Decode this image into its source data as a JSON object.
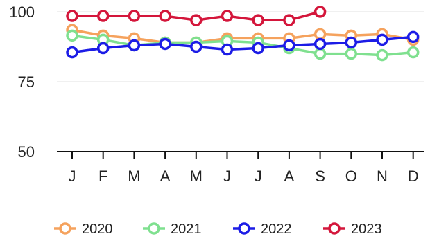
{
  "chart_data": {
    "type": "line",
    "categories": [
      "J",
      "F",
      "M",
      "A",
      "M",
      "J",
      "J",
      "A",
      "S",
      "O",
      "N",
      "D"
    ],
    "ylim": [
      50,
      100
    ],
    "yticks": [
      50,
      75,
      100
    ],
    "grid": true,
    "legend_position": "bottom",
    "series": [
      {
        "name": "2020",
        "color": "#f5a25d",
        "values": [
          93.5,
          91.5,
          90.5,
          89,
          89,
          90.5,
          90.5,
          90.5,
          92,
          91.5,
          92,
          90
        ]
      },
      {
        "name": "2021",
        "color": "#7fe08f",
        "values": [
          91.5,
          90,
          88,
          89,
          89,
          89.5,
          89,
          87,
          85,
          85,
          84.5,
          85.5
        ]
      },
      {
        "name": "2022",
        "color": "#1c1ce6",
        "values": [
          85.5,
          87,
          88,
          88.5,
          87.5,
          86.5,
          87,
          88,
          88.5,
          89,
          90,
          91
        ]
      },
      {
        "name": "2023",
        "color": "#d4163b",
        "values": [
          98.5,
          98.5,
          98.5,
          98.5,
          97,
          98.5,
          97,
          97,
          100,
          null,
          null,
          null
        ]
      }
    ]
  }
}
